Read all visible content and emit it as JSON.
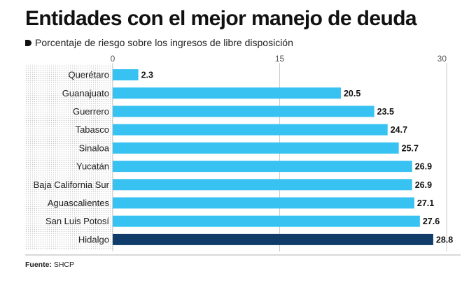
{
  "title": "Entidades con el mejor manejo de deuda",
  "subtitle": "Porcentaje de riesgo sobre los ingresos de libre disposición",
  "source": {
    "label": "Fuente:",
    "value": "SHCP"
  },
  "colors": {
    "bar": "#37c2f1",
    "highlight": "#0f3c69",
    "dots": "#c9c9c9",
    "grid": "#bdbdbd"
  },
  "chart_data": {
    "type": "bar",
    "orientation": "horizontal",
    "categories": [
      "Querétaro",
      "Guanajuato",
      "Guerrero",
      "Tabasco",
      "Sinaloa",
      "Yucatán",
      "Baja California Sur",
      "Aguascalientes",
      "San Luis Potosí",
      "Hidalgo"
    ],
    "values": [
      2.3,
      20.5,
      23.5,
      24.7,
      25.7,
      26.9,
      26.9,
      27.1,
      27.6,
      28.8
    ],
    "value_labels": [
      "2.3",
      "20.5",
      "23.5",
      "24.7",
      "25.7",
      "26.9",
      "26.9",
      "27.1",
      "27.6",
      "28.8"
    ],
    "highlight": "Hidalgo",
    "xlim": [
      0,
      30
    ],
    "xticks": [
      "0",
      "15",
      "30"
    ],
    "xlabel": "",
    "ylabel": "",
    "grid": true
  }
}
